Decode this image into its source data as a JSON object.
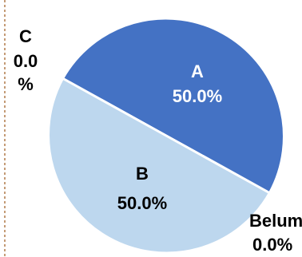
{
  "chart_data": {
    "type": "pie",
    "categories": [
      "A",
      "B",
      "C",
      "Belum"
    ],
    "values": [
      50.0,
      50.0,
      0.0,
      0.0
    ],
    "percent_labels": [
      "50.0%",
      "50.0%",
      "0.0",
      "0.0%"
    ],
    "c_percent_suffix": "%",
    "colors": [
      "#4472C4",
      "#BDD7EE",
      "#A5A5A5",
      "#FFC000"
    ],
    "label_colors": [
      "#ffffff",
      "#000000",
      "#000000",
      "#000000"
    ]
  }
}
